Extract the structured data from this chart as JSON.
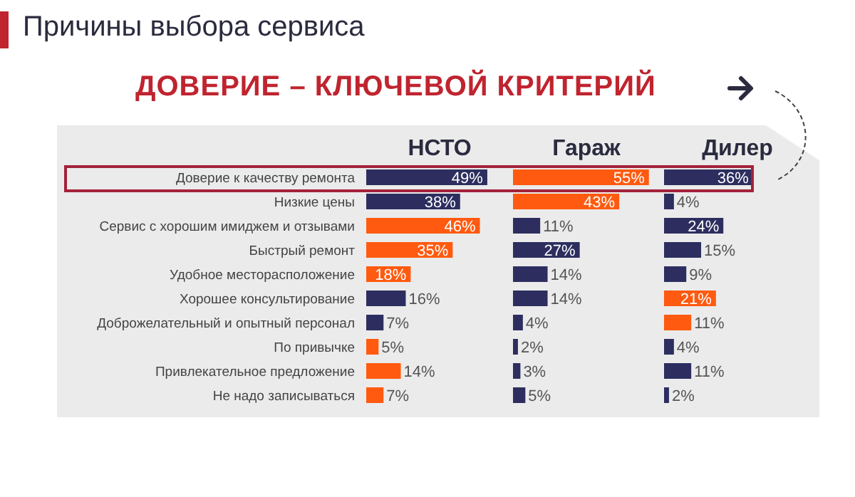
{
  "chart_data": [
    {
      "type": "bar",
      "orientation": "horizontal",
      "title": "НСТО",
      "subtitle": "Причины выбора сервиса",
      "annotations": [
        "ДОВЕРИЕ – КЛЮЧЕВОЙ КРИТЕРИЙ"
      ],
      "categories": [
        "Доверие к качеству ремонта",
        "Низкие цены",
        "Сервис с хорошим имиджем и отзывами",
        "Быстрый ремонт",
        "Удобное месторасположение",
        "Хорошее консультирование",
        "Доброжелательный и опытный персонал",
        "По привычке",
        "Привлекательное предложение",
        "Не надо записываться"
      ],
      "values": [
        49,
        38,
        46,
        35,
        18,
        16,
        7,
        5,
        14,
        7
      ],
      "value_labels": [
        "49%",
        "38%",
        "46%",
        "35%",
        "18%",
        "16%",
        "7%",
        "5%",
        "14%",
        "7%"
      ],
      "colors": [
        "#2d2e5f",
        "#2d2e5f",
        "#ff5a10",
        "#ff5a10",
        "#ff5a10",
        "#2d2e5f",
        "#2d2e5f",
        "#ff5a10",
        "#ff5a10",
        "#ff5a10"
      ]
    },
    {
      "type": "bar",
      "orientation": "horizontal",
      "title": "Гараж",
      "tick_labels": false,
      "categories": [
        null,
        null,
        null,
        null,
        null,
        null,
        null,
        null,
        null,
        null
      ],
      "values": [
        55,
        43,
        11,
        27,
        14,
        14,
        4,
        2,
        3,
        5
      ],
      "value_labels": [
        "55%",
        "43%",
        "11%",
        "27%",
        "14%",
        "14%",
        "4%",
        "2%",
        "3%",
        "5%"
      ],
      "colors": [
        "#ff5a10",
        "#ff5a10",
        "#2d2e5f",
        "#2d2e5f",
        "#2d2e5f",
        "#2d2e5f",
        "#2d2e5f",
        "#2d2e5f",
        "#2d2e5f",
        "#2d2e5f"
      ]
    },
    {
      "type": "bar",
      "orientation": "horizontal",
      "title": "Дилер",
      "tick_labels": false,
      "categories": [
        null,
        null,
        null,
        null,
        null,
        null,
        null,
        null,
        null,
        null
      ],
      "values": [
        36,
        4,
        24,
        15,
        9,
        21,
        11,
        4,
        11,
        2
      ],
      "value_labels": [
        "36%",
        "4%",
        "24%",
        "15%",
        "9%",
        "21%",
        "11%",
        "4%",
        "11%",
        "2%"
      ],
      "colors": [
        "#2d2e5f",
        "#2d2e5f",
        "#2d2e5f",
        "#2d2e5f",
        "#2d2e5f",
        "#ff5a10",
        "#ff5a10",
        "#2d2e5f",
        "#2d2e5f",
        "#2d2e5f"
      ]
    }
  ]
}
